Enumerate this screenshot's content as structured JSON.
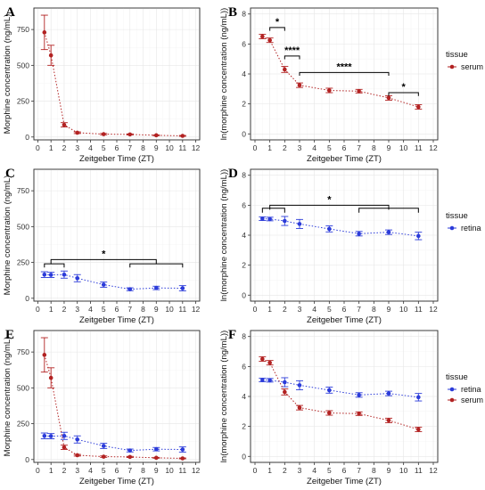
{
  "colors": {
    "serum": "#b22222",
    "retina": "#2b3bd9"
  },
  "legends": [
    {
      "panel": "B",
      "title": "tissue",
      "items": [
        {
          "label": "serum",
          "series": "serum"
        }
      ]
    },
    {
      "panel": "D",
      "title": "tissue",
      "items": [
        {
          "label": "retina",
          "series": "retina"
        }
      ]
    },
    {
      "panel": "F",
      "title": "tissue",
      "items": [
        {
          "label": "retina",
          "series": "retina"
        },
        {
          "label": "serum",
          "series": "serum"
        }
      ]
    }
  ],
  "chart_data": [
    {
      "panel": "A",
      "type": "scatter",
      "xlabel": "Zeitgeber Time (ZT)",
      "ylabel": "Morphine concentration (ng/mL)",
      "xlim": [
        -0.3,
        12.3
      ],
      "ylim": [
        -20,
        900
      ],
      "xticks": [
        0,
        1,
        2,
        3,
        4,
        5,
        6,
        7,
        8,
        9,
        10,
        11,
        12
      ],
      "yticks": [
        0,
        250,
        500,
        750
      ],
      "series": [
        {
          "key": "serum",
          "x": [
            0.5,
            1,
            2,
            3,
            5,
            7,
            9,
            11
          ],
          "y": [
            730,
            570,
            85,
            30,
            20,
            18,
            12,
            8
          ],
          "err": [
            120,
            70,
            15,
            6,
            5,
            4,
            3,
            3
          ]
        }
      ],
      "significance": []
    },
    {
      "panel": "B",
      "type": "scatter",
      "xlabel": "Zeitgeber Time (ZT)",
      "ylabel": "ln(morphine concentration (ng/mL))",
      "xlim": [
        -0.3,
        12.3
      ],
      "ylim": [
        -0.4,
        8.4
      ],
      "xticks": [
        0,
        1,
        2,
        3,
        4,
        5,
        6,
        7,
        8,
        9,
        10,
        11,
        12
      ],
      "yticks": [
        0,
        2,
        4,
        6,
        8
      ],
      "series": [
        {
          "key": "serum",
          "x": [
            0.5,
            1,
            2,
            3,
            5,
            7,
            9,
            11
          ],
          "y": [
            6.5,
            6.25,
            4.3,
            3.25,
            2.9,
            2.85,
            2.4,
            1.8
          ],
          "err": [
            0.15,
            0.15,
            0.2,
            0.15,
            0.15,
            0.12,
            0.15,
            0.15
          ]
        }
      ],
      "significance": [
        {
          "x1": 1,
          "x2": 2,
          "y": 7.1,
          "label": "*"
        },
        {
          "x1": 2,
          "x2": 3,
          "y": 5.2,
          "label": "****"
        },
        {
          "x1": 3,
          "x2": 9,
          "y": 4.1,
          "label": "****"
        },
        {
          "x1": 9,
          "x2": 11,
          "y": 2.75,
          "label": "*"
        }
      ]
    },
    {
      "panel": "C",
      "type": "scatter",
      "xlabel": "Zeitgeber Time (ZT)",
      "ylabel": "Morphine concentration (ng/mL)",
      "xlim": [
        -0.3,
        12.3
      ],
      "ylim": [
        -20,
        900
      ],
      "xticks": [
        0,
        1,
        2,
        3,
        4,
        5,
        6,
        7,
        8,
        9,
        10,
        11,
        12
      ],
      "yticks": [
        0,
        250,
        500,
        750
      ],
      "series": [
        {
          "key": "retina",
          "x": [
            0.5,
            1,
            2,
            3,
            5,
            7,
            9,
            11
          ],
          "y": [
            165,
            163,
            165,
            140,
            95,
            63,
            72,
            70
          ],
          "err": [
            20,
            18,
            25,
            25,
            18,
            10,
            12,
            18
          ]
        }
      ],
      "significance": [
        {
          "x1": 0.5,
          "x2": 2,
          "y": 240,
          "label": "",
          "drop": 25
        },
        {
          "x1": 1,
          "x2": 9,
          "y": 270,
          "label": "*",
          "drop": 30
        },
        {
          "x1": 7,
          "x2": 11,
          "y": 240,
          "label": "",
          "drop": 25
        }
      ]
    },
    {
      "panel": "D",
      "type": "scatter",
      "xlabel": "Zeitgeber Time (ZT)",
      "ylabel": "ln(morphine concentration (ng/mL))",
      "xlim": [
        -0.3,
        12.3
      ],
      "ylim": [
        -0.4,
        8.4
      ],
      "xticks": [
        0,
        1,
        2,
        3,
        4,
        5,
        6,
        7,
        8,
        9,
        10,
        11,
        12
      ],
      "yticks": [
        0,
        2,
        4,
        6,
        8
      ],
      "series": [
        {
          "key": "retina",
          "x": [
            0.5,
            1,
            2,
            3,
            5,
            7,
            9,
            11
          ],
          "y": [
            5.1,
            5.08,
            4.95,
            4.75,
            4.42,
            4.1,
            4.2,
            3.95
          ],
          "err": [
            0.12,
            0.12,
            0.3,
            0.3,
            0.2,
            0.15,
            0.15,
            0.25
          ]
        }
      ],
      "significance": [
        {
          "x1": 0.5,
          "x2": 2,
          "y": 5.8,
          "label": "",
          "drop": 0.3
        },
        {
          "x1": 1,
          "x2": 9,
          "y": 6.0,
          "label": "*",
          "drop": 0.3
        },
        {
          "x1": 7,
          "x2": 11,
          "y": 5.8,
          "label": "",
          "drop": 0.3
        }
      ]
    },
    {
      "panel": "E",
      "type": "scatter",
      "xlabel": "Zeitgeber Time (ZT)",
      "ylabel": "Morphine concentration (ng/mL)",
      "xlim": [
        -0.3,
        12.3
      ],
      "ylim": [
        -20,
        900
      ],
      "xticks": [
        0,
        1,
        2,
        3,
        4,
        5,
        6,
        7,
        8,
        9,
        10,
        11,
        12
      ],
      "yticks": [
        0,
        250,
        500,
        750
      ],
      "series": [
        {
          "key": "retina",
          "x": [
            0.5,
            1,
            2,
            3,
            5,
            7,
            9,
            11
          ],
          "y": [
            165,
            163,
            165,
            140,
            95,
            63,
            72,
            70
          ],
          "err": [
            20,
            18,
            25,
            25,
            18,
            10,
            12,
            18
          ]
        },
        {
          "key": "serum",
          "x": [
            0.5,
            1,
            2,
            3,
            5,
            7,
            9,
            11
          ],
          "y": [
            730,
            570,
            85,
            30,
            20,
            18,
            12,
            8
          ],
          "err": [
            120,
            70,
            15,
            6,
            5,
            4,
            3,
            3
          ]
        }
      ],
      "significance": []
    },
    {
      "panel": "F",
      "type": "scatter",
      "xlabel": "Zeitgeber Time (ZT)",
      "ylabel": "ln(morphine concentration (ng/mL))",
      "xlim": [
        -0.3,
        12.3
      ],
      "ylim": [
        -0.4,
        8.4
      ],
      "xticks": [
        0,
        1,
        2,
        3,
        4,
        5,
        6,
        7,
        8,
        9,
        10,
        11,
        12
      ],
      "yticks": [
        0,
        2,
        4,
        6,
        8
      ],
      "series": [
        {
          "key": "retina",
          "x": [
            0.5,
            1,
            2,
            3,
            5,
            7,
            9,
            11
          ],
          "y": [
            5.1,
            5.08,
            4.95,
            4.75,
            4.42,
            4.1,
            4.2,
            3.95
          ],
          "err": [
            0.12,
            0.12,
            0.3,
            0.3,
            0.2,
            0.15,
            0.15,
            0.25
          ]
        },
        {
          "key": "serum",
          "x": [
            0.5,
            1,
            2,
            3,
            5,
            7,
            9,
            11
          ],
          "y": [
            6.5,
            6.25,
            4.3,
            3.25,
            2.9,
            2.85,
            2.4,
            1.8
          ],
          "err": [
            0.15,
            0.15,
            0.2,
            0.15,
            0.15,
            0.12,
            0.15,
            0.15
          ]
        }
      ],
      "significance": []
    }
  ]
}
